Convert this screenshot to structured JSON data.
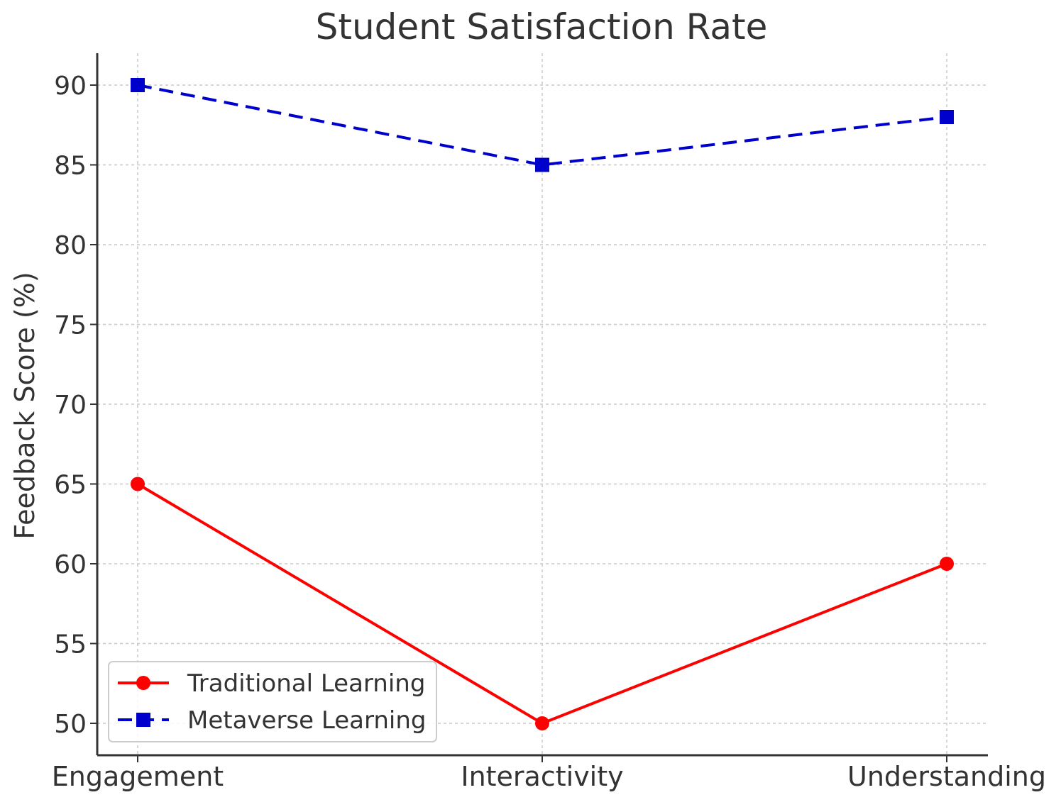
{
  "chart_data": {
    "type": "line",
    "title": "Student Satisfaction Rate",
    "xlabel": "",
    "ylabel": "Feedback Score (%)",
    "categories": [
      "Engagement",
      "Interactivity",
      "Understanding"
    ],
    "ylim": [
      48,
      92
    ],
    "yticks": [
      50,
      55,
      60,
      65,
      70,
      75,
      80,
      85,
      90
    ],
    "grid": true,
    "legend_position": "lower-left",
    "series": [
      {
        "name": "Traditional Learning",
        "values": [
          65,
          50,
          60
        ],
        "color": "#ff0000",
        "line_style": "solid",
        "marker": "circle"
      },
      {
        "name": "Metaverse Learning",
        "values": [
          90,
          85,
          88
        ],
        "color": "#0000cc",
        "line_style": "dashed",
        "marker": "square"
      }
    ]
  }
}
